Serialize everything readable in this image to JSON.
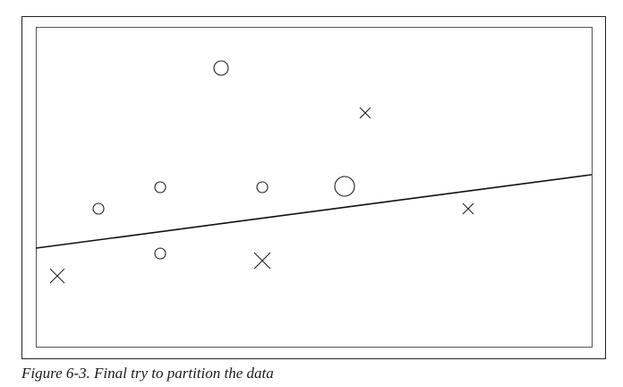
{
  "caption": "Figure 6-3. Final try to partition the data"
}
